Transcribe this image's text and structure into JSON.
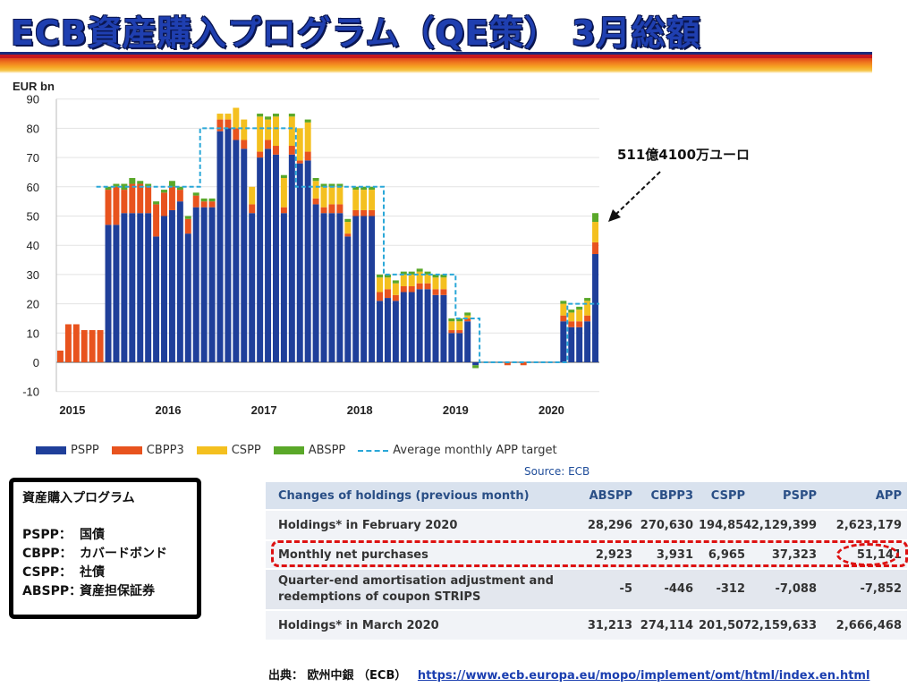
{
  "title": "ECB資産購入プログラム（QE策） 3月総額",
  "callout": "511億4100万ユーロ",
  "legend": {
    "pspp": "PSPP",
    "cbpp3": "CBPP3",
    "cspp": "CSPP",
    "abspp": "ABSPP",
    "target": "Average monthly APP target"
  },
  "source": "Source: ECB",
  "colors": {
    "pspp": "#1f3f9a",
    "cbpp3": "#e8531e",
    "cspp": "#f4c01f",
    "abspp": "#5aa829",
    "target": "#2aa7d8"
  },
  "chart_data": {
    "type": "bar",
    "stacked": true,
    "unit_label": "EUR bn",
    "ylim": [
      -10,
      90
    ],
    "yticks": [
      -10,
      0,
      10,
      20,
      30,
      40,
      50,
      60,
      70,
      80,
      90
    ],
    "xtick_labels": [
      "2015",
      "2016",
      "2017",
      "2018",
      "2019",
      "2020"
    ],
    "xtick_index": [
      0,
      12,
      24,
      36,
      48,
      60
    ],
    "start_month": "2014-10",
    "series": [
      {
        "name": "PSPP",
        "values": [
          0,
          0,
          0,
          0,
          0,
          0,
          47,
          47,
          51,
          51,
          51,
          51,
          43,
          50,
          52,
          55,
          44,
          53,
          53,
          53,
          79,
          80,
          76,
          73,
          51,
          70,
          73,
          71,
          51,
          71,
          68,
          69,
          54,
          51,
          51,
          51,
          43,
          50,
          50,
          50,
          21,
          22,
          21,
          24,
          24,
          25,
          25,
          23,
          23,
          10,
          10,
          14,
          -1,
          0,
          0,
          0,
          0,
          0,
          0,
          0,
          0,
          0,
          0,
          14,
          12,
          12,
          14,
          37
        ]
      },
      {
        "name": "CBPP3",
        "values": [
          4,
          13,
          13,
          11,
          11,
          11,
          12,
          13,
          8,
          10,
          10,
          9,
          11,
          8,
          8,
          4,
          5,
          4,
          2,
          2,
          4,
          3,
          4,
          3,
          3,
          2,
          3,
          3,
          2,
          3,
          1,
          3,
          2,
          2,
          3,
          3,
          1,
          2,
          2,
          2,
          3,
          3,
          2,
          2,
          2,
          2,
          2,
          2,
          2,
          1,
          1,
          1,
          0,
          0,
          0,
          0,
          -1,
          0,
          -1,
          0,
          0,
          0,
          0,
          2,
          2,
          2,
          2,
          4
        ]
      },
      {
        "name": "CSPP",
        "values": [
          0,
          0,
          0,
          0,
          0,
          0,
          0,
          0,
          0,
          0,
          0,
          0,
          0,
          0,
          0,
          0,
          0,
          0,
          0,
          0,
          2,
          2,
          7,
          7,
          6,
          12,
          7,
          10,
          10,
          10,
          11,
          10,
          6,
          7,
          6,
          6,
          4,
          7,
          7,
          7,
          5,
          4,
          4,
          4,
          4,
          4,
          3,
          4,
          4,
          3,
          3,
          1,
          0,
          0,
          0,
          0,
          0,
          0,
          0,
          0,
          0,
          0,
          0,
          4,
          3,
          4,
          5,
          7
        ]
      },
      {
        "name": "ABSPP",
        "values": [
          0,
          0,
          0,
          0,
          0,
          0,
          1,
          1,
          2,
          2,
          1,
          1,
          1,
          1,
          2,
          1,
          1,
          1,
          1,
          1,
          0,
          0,
          0,
          0,
          0,
          1,
          1,
          1,
          1,
          1,
          0,
          1,
          1,
          1,
          1,
          1,
          1,
          1,
          1,
          1,
          1,
          1,
          1,
          1,
          1,
          1,
          1,
          1,
          1,
          1,
          1,
          1,
          -1,
          0,
          0,
          0,
          0,
          0,
          0,
          0,
          0,
          0,
          0,
          1,
          1,
          1,
          1,
          3
        ]
      }
    ],
    "target_line": [
      null,
      null,
      null,
      null,
      null,
      60,
      60,
      60,
      60,
      60,
      60,
      60,
      60,
      60,
      60,
      60,
      60,
      60,
      80,
      80,
      80,
      80,
      80,
      80,
      80,
      80,
      80,
      80,
      80,
      80,
      60,
      60,
      60,
      60,
      60,
      60,
      60,
      60,
      60,
      60,
      60,
      30,
      30,
      30,
      30,
      30,
      30,
      30,
      30,
      30,
      15,
      15,
      15,
      0,
      0,
      0,
      0,
      0,
      0,
      0,
      0,
      0,
      0,
      0,
      20,
      20,
      20,
      20
    ]
  },
  "glossary": {
    "heading": "資産購入プログラム",
    "rows": [
      {
        "term": "PSPP：",
        "meaning": "国債"
      },
      {
        "term": "CBPP：",
        "meaning": "カバードボンド"
      },
      {
        "term": "CSPP：",
        "meaning": "社債"
      },
      {
        "term": "ABSPP：",
        "meaning": "資産担保証券"
      }
    ]
  },
  "table": {
    "headers": [
      "Changes of holdings (previous month)",
      "ABSPP",
      "CBPP3",
      "CSPP",
      "PSPP",
      "APP"
    ],
    "rows": [
      {
        "label": "Holdings* in February 2020",
        "abspp": "28,296",
        "cbpp3": "270,630",
        "cspp": "194,854",
        "pspp": "2,129,399",
        "app": "2,623,179"
      },
      {
        "label": "Monthly net purchases",
        "abspp": "2,923",
        "cbpp3": "3,931",
        "cspp": "6,965",
        "pspp": "37,323",
        "app": "51,141"
      },
      {
        "label": "Quarter-end amortisation adjustment and redemptions of coupon STRIPS",
        "abspp": "-5",
        "cbpp3": "-446",
        "cspp": "-312",
        "pspp": "-7,088",
        "app": "-7,852"
      },
      {
        "label": "Holdings* in March 2020",
        "abspp": "31,213",
        "cbpp3": "274,114",
        "cspp": "201,507",
        "pspp": "2,159,633",
        "app": "2,666,468"
      }
    ]
  },
  "footer": {
    "label": "出典： 欧州中銀 （ECB）",
    "url": "https://www.ecb.europa.eu/mopo/implement/omt/html/index.en.html"
  }
}
